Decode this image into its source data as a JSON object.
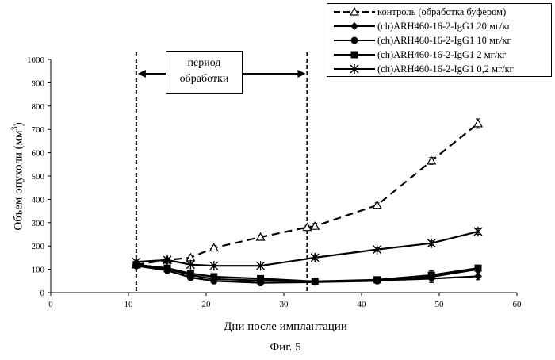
{
  "chart_data": {
    "type": "line",
    "xlabel": "Дни после имплантации",
    "ylabel_main": "Объем опухоли (мм",
    "ylabel_sup": "3",
    "ylabel_tail": ")",
    "xlim": [
      0,
      60
    ],
    "ylim": [
      0,
      1000
    ],
    "xticks": [
      0,
      10,
      20,
      30,
      40,
      50,
      60
    ],
    "yticks": [
      0,
      100,
      200,
      300,
      400,
      500,
      600,
      700,
      800,
      900,
      1000
    ],
    "grid": false,
    "legend_position": "top-right",
    "treatment_period": {
      "label_line1": "период",
      "label_line2": "обработки",
      "start": 11,
      "end": 33
    },
    "series": [
      {
        "name": "контроль (обработка буфером)",
        "marker": "triangle-open",
        "line": "dashed",
        "x": [
          11,
          15,
          18,
          21,
          27,
          33,
          34,
          42,
          49,
          55
        ],
        "y": [
          120,
          140,
          150,
          192,
          238,
          280,
          285,
          375,
          565,
          725
        ],
        "err": [
          10,
          8,
          8,
          10,
          8,
          8,
          12,
          10,
          15,
          20
        ]
      },
      {
        "name": "(ch)ARH460-16-2-IgG1 20 мг/кг",
        "marker": "diamond",
        "line": "solid",
        "x": [
          11,
          15,
          18,
          21,
          27,
          34,
          42,
          49,
          55
        ],
        "y": [
          118,
          102,
          75,
          58,
          52,
          47,
          52,
          60,
          70
        ],
        "err": [
          8,
          6,
          6,
          6,
          6,
          6,
          8,
          12,
          15
        ]
      },
      {
        "name": "(ch)ARH460-16-2-IgG1 10 мг/кг",
        "marker": "circle",
        "line": "solid",
        "x": [
          11,
          15,
          18,
          21,
          27,
          34,
          42,
          49,
          55
        ],
        "y": [
          115,
          95,
          65,
          50,
          42,
          45,
          50,
          68,
          100
        ],
        "err": [
          8,
          6,
          6,
          6,
          8,
          6,
          8,
          25,
          10
        ]
      },
      {
        "name": "(ch)ARH460-16-2-IgG1 2 мг/кг",
        "marker": "square",
        "line": "solid",
        "x": [
          11,
          15,
          18,
          21,
          27,
          34,
          42,
          49,
          55
        ],
        "y": [
          120,
          105,
          82,
          68,
          60,
          48,
          55,
          75,
          105
        ],
        "err": [
          8,
          6,
          6,
          6,
          6,
          6,
          8,
          10,
          10
        ]
      },
      {
        "name": "(ch)ARH460-16-2-IgG1 0,2 мг/кг",
        "marker": "asterisk",
        "line": "solid",
        "x": [
          11,
          15,
          18,
          21,
          27,
          34,
          42,
          49,
          55
        ],
        "y": [
          132,
          140,
          120,
          115,
          115,
          150,
          185,
          212,
          262
        ],
        "err": [
          8,
          6,
          6,
          6,
          6,
          8,
          8,
          10,
          12
        ]
      }
    ]
  },
  "caption": "Фиг. 5"
}
